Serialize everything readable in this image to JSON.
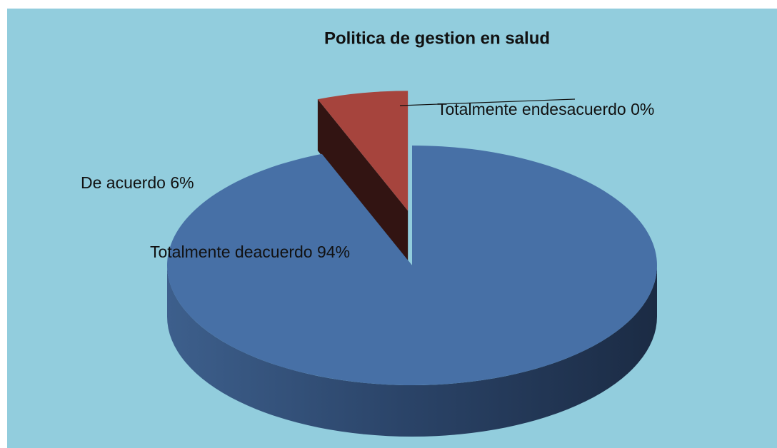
{
  "chart_data": {
    "type": "pie",
    "title": "Politica de gestion en salud",
    "categories": [
      "Totalmente deacuerdo",
      "De acuerdo",
      "Totalmente endesacuerdo"
    ],
    "values": [
      94,
      6,
      0
    ],
    "value_labels": [
      "94%",
      "6%",
      "0%"
    ],
    "colors": [
      "#4770a6",
      "#a6443d",
      "#8aa84e"
    ]
  }
}
